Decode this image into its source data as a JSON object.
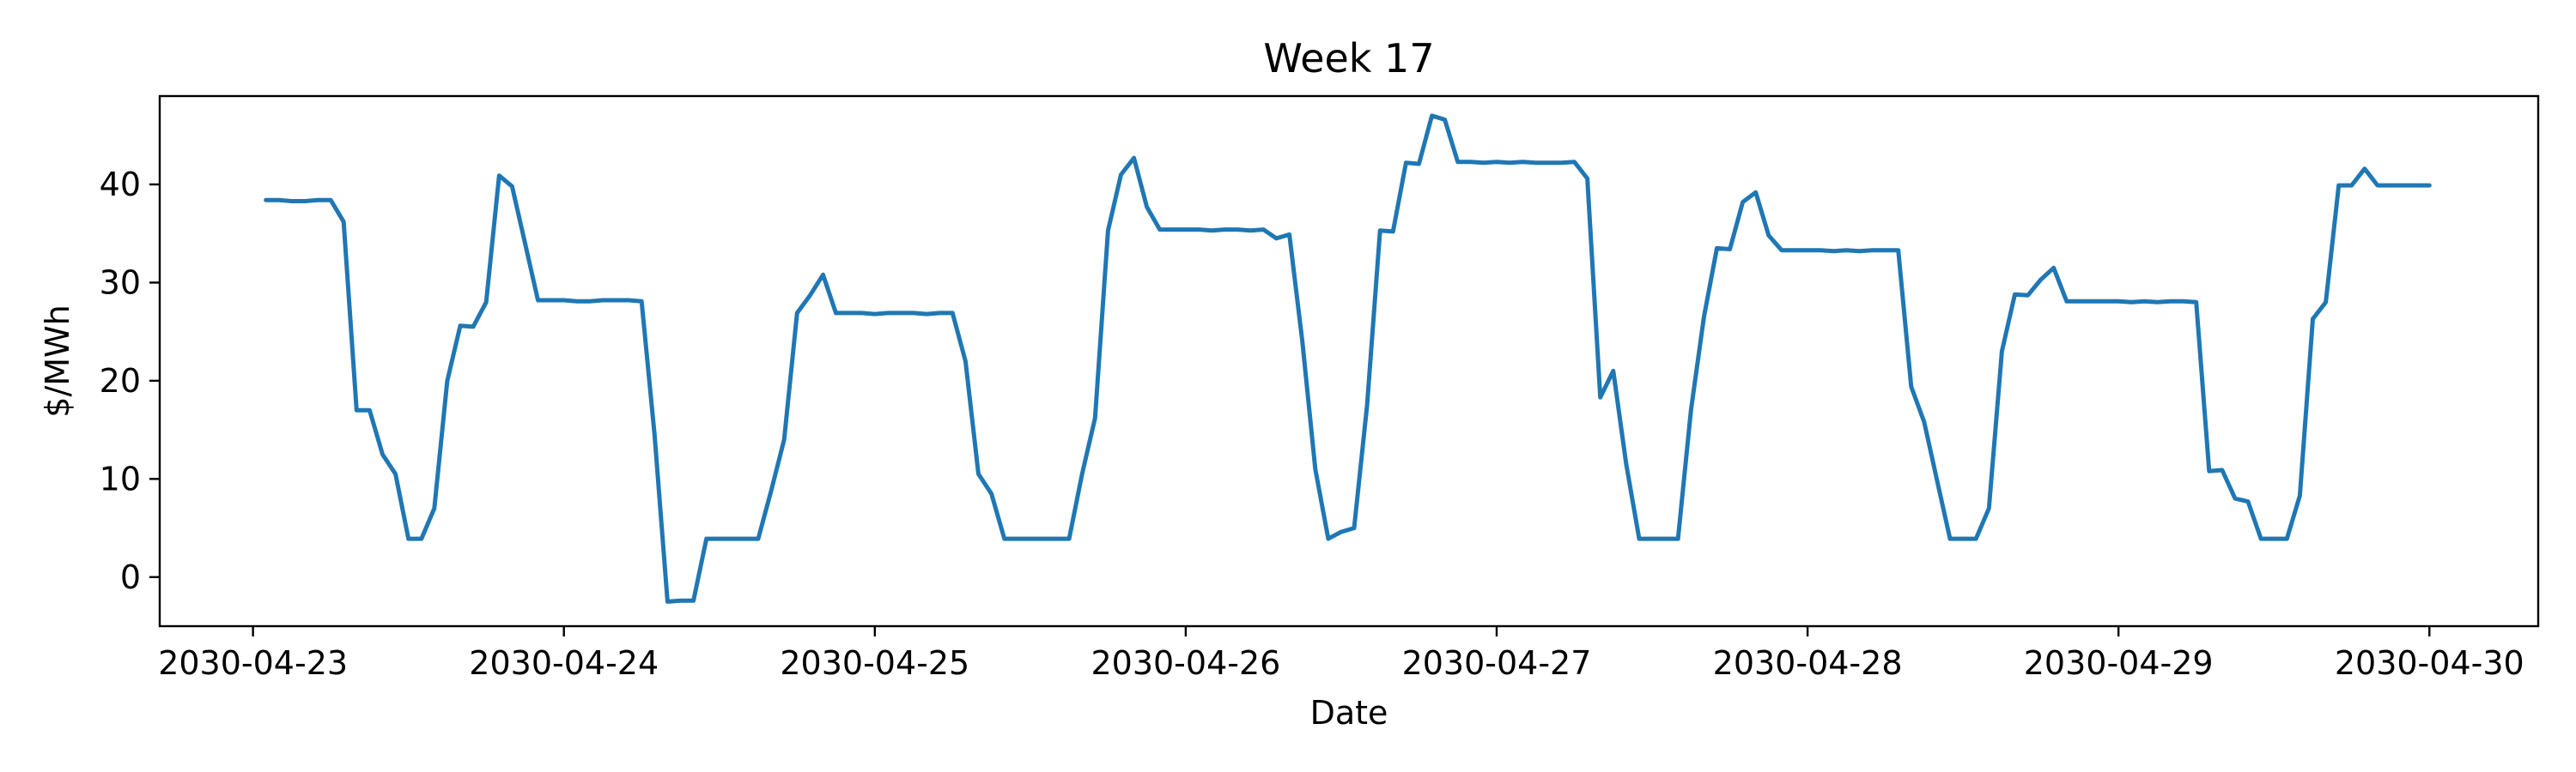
{
  "chart_data": {
    "type": "line",
    "title": "Week 17",
    "xlabel": "Date",
    "ylabel": "$/MWh",
    "x_ticks": [
      "2030-04-23",
      "2030-04-24",
      "2030-04-25",
      "2030-04-26",
      "2030-04-27",
      "2030-04-28",
      "2030-04-29",
      "2030-04-30"
    ],
    "y_ticks": [
      "0",
      "10",
      "20",
      "30",
      "40"
    ],
    "xlim": [
      "2030-04-22T16:48",
      "2030-04-30T08:24"
    ],
    "ylim": [
      -5,
      49
    ],
    "grid": false,
    "legend": "none",
    "color": "#1f77b4",
    "series": [
      {
        "points": [
          [
            "2030-04-23T01:00",
            38.4
          ],
          [
            "2030-04-23T02:00",
            38.4
          ],
          [
            "2030-04-23T03:00",
            38.3
          ],
          [
            "2030-04-23T04:00",
            38.3
          ],
          [
            "2030-04-23T05:00",
            38.4
          ],
          [
            "2030-04-23T06:00",
            38.4
          ],
          [
            "2030-04-23T07:00",
            36.2
          ],
          [
            "2030-04-23T08:00",
            17.0
          ],
          [
            "2030-04-23T09:00",
            17.0
          ],
          [
            "2030-04-23T10:00",
            12.5
          ],
          [
            "2030-04-23T11:00",
            10.5
          ],
          [
            "2030-04-23T12:00",
            3.9
          ],
          [
            "2030-04-23T13:00",
            3.9
          ],
          [
            "2030-04-23T14:00",
            7.0
          ],
          [
            "2030-04-23T15:00",
            20.0
          ],
          [
            "2030-04-23T16:00",
            25.6
          ],
          [
            "2030-04-23T17:00",
            25.5
          ],
          [
            "2030-04-23T18:00",
            28.0
          ],
          [
            "2030-04-23T19:00",
            40.9
          ],
          [
            "2030-04-23T20:00",
            39.8
          ],
          [
            "2030-04-23T21:00",
            34.0
          ],
          [
            "2030-04-23T22:00",
            28.2
          ],
          [
            "2030-04-23T23:00",
            28.2
          ],
          [
            "2030-04-24T00:00",
            28.2
          ],
          [
            "2030-04-24T01:00",
            28.1
          ],
          [
            "2030-04-24T02:00",
            28.1
          ],
          [
            "2030-04-24T03:00",
            28.2
          ],
          [
            "2030-04-24T04:00",
            28.2
          ],
          [
            "2030-04-24T05:00",
            28.2
          ],
          [
            "2030-04-24T06:00",
            28.1
          ],
          [
            "2030-04-24T07:00",
            14.5
          ],
          [
            "2030-04-24T08:00",
            -2.5
          ],
          [
            "2030-04-24T09:00",
            -2.4
          ],
          [
            "2030-04-24T10:00",
            -2.4
          ],
          [
            "2030-04-24T11:00",
            3.9
          ],
          [
            "2030-04-24T12:00",
            3.9
          ],
          [
            "2030-04-24T13:00",
            3.9
          ],
          [
            "2030-04-24T14:00",
            3.9
          ],
          [
            "2030-04-24T15:00",
            3.9
          ],
          [
            "2030-04-24T16:00",
            8.8
          ],
          [
            "2030-04-24T17:00",
            14.0
          ],
          [
            "2030-04-24T18:00",
            26.9
          ],
          [
            "2030-04-24T19:00",
            28.7
          ],
          [
            "2030-04-24T20:00",
            30.8
          ],
          [
            "2030-04-24T21:00",
            26.9
          ],
          [
            "2030-04-24T22:00",
            26.9
          ],
          [
            "2030-04-24T23:00",
            26.9
          ],
          [
            "2030-04-25T00:00",
            26.8
          ],
          [
            "2030-04-25T01:00",
            26.9
          ],
          [
            "2030-04-25T02:00",
            26.9
          ],
          [
            "2030-04-25T03:00",
            26.9
          ],
          [
            "2030-04-25T04:00",
            26.8
          ],
          [
            "2030-04-25T05:00",
            26.9
          ],
          [
            "2030-04-25T06:00",
            26.9
          ],
          [
            "2030-04-25T07:00",
            22.0
          ],
          [
            "2030-04-25T08:00",
            10.5
          ],
          [
            "2030-04-25T09:00",
            8.5
          ],
          [
            "2030-04-25T10:00",
            3.9
          ],
          [
            "2030-04-25T11:00",
            3.9
          ],
          [
            "2030-04-25T12:00",
            3.9
          ],
          [
            "2030-04-25T13:00",
            3.9
          ],
          [
            "2030-04-25T14:00",
            3.9
          ],
          [
            "2030-04-25T15:00",
            3.9
          ],
          [
            "2030-04-25T16:00",
            10.5
          ],
          [
            "2030-04-25T17:00",
            16.2
          ],
          [
            "2030-04-25T18:00",
            35.3
          ],
          [
            "2030-04-25T19:00",
            41.0
          ],
          [
            "2030-04-25T20:00",
            42.7
          ],
          [
            "2030-04-25T21:00",
            37.7
          ],
          [
            "2030-04-25T22:00",
            35.4
          ],
          [
            "2030-04-25T23:00",
            35.4
          ],
          [
            "2030-04-26T00:00",
            35.4
          ],
          [
            "2030-04-26T01:00",
            35.4
          ],
          [
            "2030-04-26T02:00",
            35.3
          ],
          [
            "2030-04-26T03:00",
            35.4
          ],
          [
            "2030-04-26T04:00",
            35.4
          ],
          [
            "2030-04-26T05:00",
            35.3
          ],
          [
            "2030-04-26T06:00",
            35.4
          ],
          [
            "2030-04-26T07:00",
            34.5
          ],
          [
            "2030-04-26T08:00",
            34.9
          ],
          [
            "2030-04-26T09:00",
            24.0
          ],
          [
            "2030-04-26T10:00",
            11.0
          ],
          [
            "2030-04-26T11:00",
            3.9
          ],
          [
            "2030-04-26T12:00",
            4.6
          ],
          [
            "2030-04-26T13:00",
            5.0
          ],
          [
            "2030-04-26T14:00",
            17.5
          ],
          [
            "2030-04-26T15:00",
            35.3
          ],
          [
            "2030-04-26T16:00",
            35.2
          ],
          [
            "2030-04-26T17:00",
            42.2
          ],
          [
            "2030-04-26T18:00",
            42.1
          ],
          [
            "2030-04-26T19:00",
            47.0
          ],
          [
            "2030-04-26T20:00",
            46.6
          ],
          [
            "2030-04-26T21:00",
            42.3
          ],
          [
            "2030-04-26T22:00",
            42.3
          ],
          [
            "2030-04-26T23:00",
            42.2
          ],
          [
            "2030-04-27T00:00",
            42.3
          ],
          [
            "2030-04-27T01:00",
            42.2
          ],
          [
            "2030-04-27T02:00",
            42.3
          ],
          [
            "2030-04-27T03:00",
            42.2
          ],
          [
            "2030-04-27T04:00",
            42.2
          ],
          [
            "2030-04-27T05:00",
            42.2
          ],
          [
            "2030-04-27T06:00",
            42.3
          ],
          [
            "2030-04-27T07:00",
            40.6
          ],
          [
            "2030-04-27T08:00",
            18.3
          ],
          [
            "2030-04-27T09:00",
            21.0
          ],
          [
            "2030-04-27T10:00",
            11.5
          ],
          [
            "2030-04-27T11:00",
            3.9
          ],
          [
            "2030-04-27T12:00",
            3.9
          ],
          [
            "2030-04-27T13:00",
            3.9
          ],
          [
            "2030-04-27T14:00",
            3.9
          ],
          [
            "2030-04-27T15:00",
            17.0
          ],
          [
            "2030-04-27T16:00",
            26.5
          ],
          [
            "2030-04-27T17:00",
            33.5
          ],
          [
            "2030-04-27T18:00",
            33.4
          ],
          [
            "2030-04-27T19:00",
            38.2
          ],
          [
            "2030-04-27T20:00",
            39.2
          ],
          [
            "2030-04-27T21:00",
            34.8
          ],
          [
            "2030-04-27T22:00",
            33.3
          ],
          [
            "2030-04-27T23:00",
            33.3
          ],
          [
            "2030-04-28T00:00",
            33.3
          ],
          [
            "2030-04-28T01:00",
            33.3
          ],
          [
            "2030-04-28T02:00",
            33.2
          ],
          [
            "2030-04-28T03:00",
            33.3
          ],
          [
            "2030-04-28T04:00",
            33.2
          ],
          [
            "2030-04-28T05:00",
            33.3
          ],
          [
            "2030-04-28T06:00",
            33.3
          ],
          [
            "2030-04-28T07:00",
            33.3
          ],
          [
            "2030-04-28T08:00",
            19.4
          ],
          [
            "2030-04-28T09:00",
            15.8
          ],
          [
            "2030-04-28T10:00",
            9.8
          ],
          [
            "2030-04-28T11:00",
            3.9
          ],
          [
            "2030-04-28T12:00",
            3.9
          ],
          [
            "2030-04-28T13:00",
            3.9
          ],
          [
            "2030-04-28T14:00",
            7.0
          ],
          [
            "2030-04-28T15:00",
            23.0
          ],
          [
            "2030-04-28T16:00",
            28.8
          ],
          [
            "2030-04-28T17:00",
            28.7
          ],
          [
            "2030-04-28T18:00",
            30.3
          ],
          [
            "2030-04-28T19:00",
            31.5
          ],
          [
            "2030-04-28T20:00",
            28.1
          ],
          [
            "2030-04-28T21:00",
            28.1
          ],
          [
            "2030-04-28T22:00",
            28.1
          ],
          [
            "2030-04-28T23:00",
            28.1
          ],
          [
            "2030-04-29T00:00",
            28.1
          ],
          [
            "2030-04-29T01:00",
            28.0
          ],
          [
            "2030-04-29T02:00",
            28.1
          ],
          [
            "2030-04-29T03:00",
            28.0
          ],
          [
            "2030-04-29T04:00",
            28.1
          ],
          [
            "2030-04-29T05:00",
            28.1
          ],
          [
            "2030-04-29T06:00",
            28.0
          ],
          [
            "2030-04-29T07:00",
            10.8
          ],
          [
            "2030-04-29T08:00",
            10.9
          ],
          [
            "2030-04-29T09:00",
            8.0
          ],
          [
            "2030-04-29T10:00",
            7.7
          ],
          [
            "2030-04-29T11:00",
            3.9
          ],
          [
            "2030-04-29T12:00",
            3.9
          ],
          [
            "2030-04-29T13:00",
            3.9
          ],
          [
            "2030-04-29T14:00",
            8.3
          ],
          [
            "2030-04-29T15:00",
            26.3
          ],
          [
            "2030-04-29T16:00",
            28.0
          ],
          [
            "2030-04-29T17:00",
            39.9
          ],
          [
            "2030-04-29T18:00",
            39.9
          ],
          [
            "2030-04-29T19:00",
            41.6
          ],
          [
            "2030-04-29T20:00",
            39.9
          ],
          [
            "2030-04-29T21:00",
            39.9
          ],
          [
            "2030-04-29T22:00",
            39.9
          ],
          [
            "2030-04-29T23:00",
            39.9
          ],
          [
            "2030-04-30T00:00",
            39.9
          ]
        ]
      }
    ]
  }
}
